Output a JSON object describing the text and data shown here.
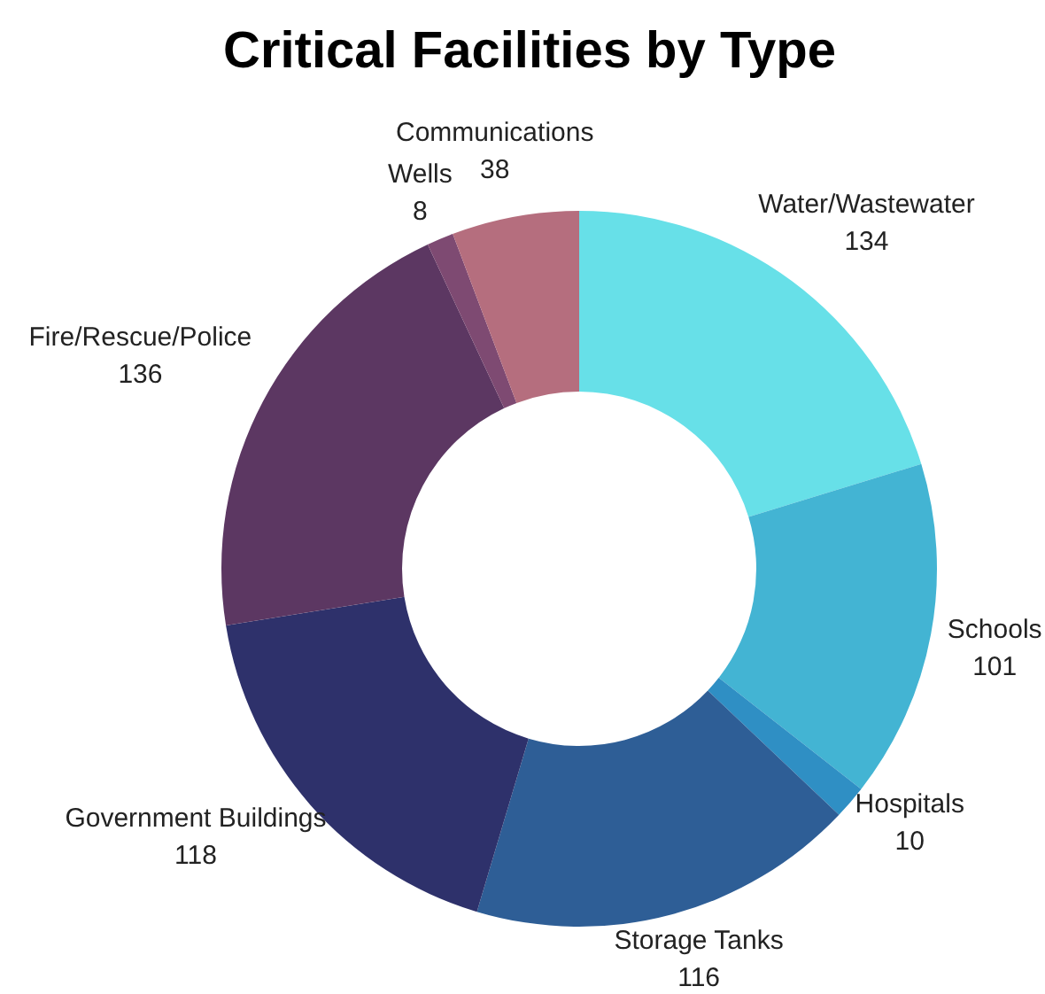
{
  "chart_data": {
    "type": "donut",
    "title": "Critical Facilities by Type",
    "categories": [
      "Water/Wastewater",
      "Schools",
      "Hospitals",
      "Storage Tanks",
      "Government Buildings",
      "Fire/Rescue/Police",
      "Wells",
      "Communications"
    ],
    "values": [
      134,
      101,
      10,
      116,
      118,
      136,
      8,
      38
    ],
    "colors": [
      "#67e0e8",
      "#43b4d3",
      "#2f8fc4",
      "#2e5e96",
      "#2e316b",
      "#5c3762",
      "#7e4a72",
      "#b56e7e"
    ],
    "data_labels": true,
    "legend": false
  }
}
